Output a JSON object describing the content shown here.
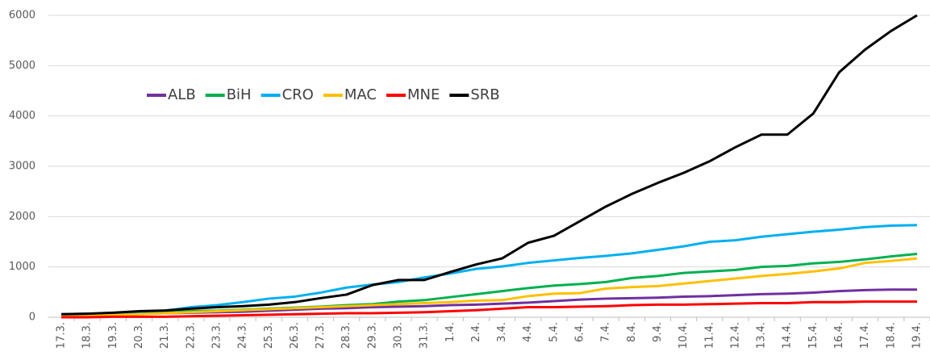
{
  "chart_data": {
    "type": "line",
    "categories": [
      "17.3.",
      "18.3.",
      "19.3.",
      "20.3.",
      "21.3.",
      "22.3.",
      "23.3.",
      "24.3.",
      "25.3.",
      "26.3.",
      "27.3.",
      "28.3.",
      "29.3.",
      "30.3.",
      "31.3.",
      "1.4.",
      "2.4.",
      "3.4.",
      "4.4.",
      "5.4.",
      "6.4.",
      "7.4.",
      "8.4.",
      "9.4.",
      "10.4.",
      "11.4.",
      "12.4.",
      "13.4.",
      "14.4.",
      "15.4.",
      "16.4.",
      "17.4.",
      "18.4.",
      "19.4."
    ],
    "series": [
      {
        "name": "ALB",
        "color": "#7030a0",
        "values": [
          40,
          50,
          60,
          70,
          80,
          90,
          100,
          110,
          130,
          150,
          170,
          180,
          200,
          210,
          220,
          240,
          250,
          270,
          290,
          320,
          350,
          370,
          380,
          390,
          410,
          420,
          440,
          460,
          470,
          490,
          520,
          540,
          550,
          550
        ]
      },
      {
        "name": "BiH",
        "color": "#00b050",
        "values": [
          30,
          40,
          60,
          80,
          100,
          120,
          130,
          150,
          170,
          190,
          210,
          240,
          260,
          310,
          340,
          400,
          460,
          520,
          580,
          630,
          660,
          700,
          780,
          820,
          880,
          910,
          940,
          1000,
          1020,
          1070,
          1100,
          1150,
          1210,
          1260
        ]
      },
      {
        "name": "CRO",
        "color": "#00b0f0",
        "values": [
          60,
          70,
          80,
          100,
          130,
          200,
          240,
          300,
          370,
          410,
          490,
          590,
          650,
          700,
          790,
          870,
          960,
          1010,
          1080,
          1130,
          1180,
          1220,
          1270,
          1340,
          1410,
          1500,
          1530,
          1600,
          1650,
          1700,
          1740,
          1790,
          1820,
          1830
        ]
      },
      {
        "name": "MAC",
        "color": "#ffc000",
        "values": [
          20,
          30,
          40,
          60,
          80,
          100,
          120,
          140,
          160,
          180,
          200,
          220,
          240,
          260,
          280,
          300,
          330,
          340,
          420,
          470,
          480,
          570,
          600,
          620,
          670,
          720,
          770,
          820,
          860,
          910,
          970,
          1080,
          1120,
          1170
        ]
      },
      {
        "name": "MNE",
        "color": "#ff0000",
        "values": [
          0,
          0,
          10,
          10,
          10,
          20,
          30,
          40,
          50,
          60,
          70,
          80,
          80,
          90,
          100,
          120,
          140,
          170,
          200,
          200,
          210,
          220,
          240,
          250,
          250,
          260,
          270,
          280,
          280,
          300,
          300,
          310,
          310,
          310
        ]
      },
      {
        "name": "SRB",
        "color": "#000000",
        "values": [
          60,
          70,
          90,
          120,
          135,
          170,
          200,
          220,
          250,
          300,
          380,
          450,
          640,
          740,
          740,
          900,
          1050,
          1170,
          1480,
          1620,
          1910,
          2200,
          2450,
          2670,
          2870,
          3100,
          3380,
          3630,
          3630,
          4050,
          4870,
          5320,
          5690,
          6000
        ]
      }
    ],
    "ylim": [
      0,
      6000
    ],
    "yticks": [
      0,
      1000,
      2000,
      3000,
      4000,
      5000,
      6000
    ],
    "grid": true,
    "legend": "top-left"
  }
}
